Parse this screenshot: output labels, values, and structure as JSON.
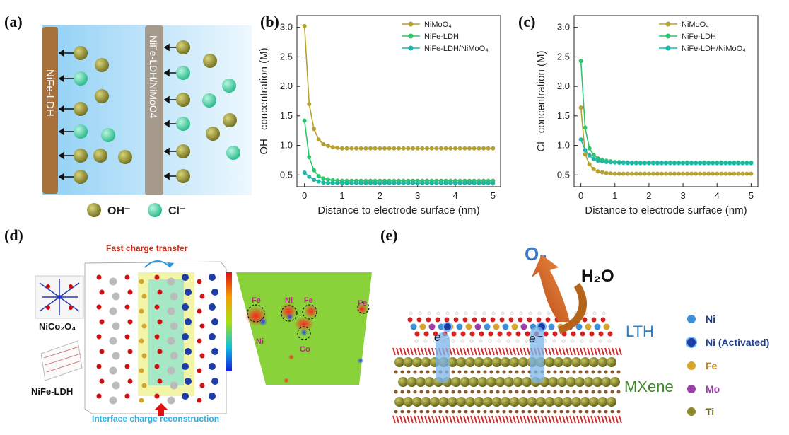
{
  "panels": {
    "a": {
      "label": "(a)",
      "electrode1": "NiFe-LDH",
      "electrode2": "NiFe-LDH/NiMoO4",
      "legend": [
        {
          "label": "OH⁻",
          "color": "#8c8a2c"
        },
        {
          "label": "Cl⁻",
          "color": "#3ed1a6"
        }
      ]
    },
    "b": {
      "label": "(b)"
    },
    "c": {
      "label": "(c)"
    },
    "d": {
      "label": "(d)",
      "title": "Fast charge transfer",
      "bottom": "Interface charge reconstruction",
      "structure1": "NiCo₂O₄",
      "structure2": "NiFe-LDH",
      "map_labels": [
        "Fe",
        "Ni",
        "Fe",
        "Fe",
        "Ni",
        "Co"
      ]
    },
    "e": {
      "label": "(e)",
      "o2": "O₂",
      "h2o": "H₂O",
      "electron": "e⁻",
      "layer_top": "LTH",
      "layer_bottom": "MXene",
      "legend": [
        {
          "label": "Ni",
          "color": "#3b8fd8"
        },
        {
          "label": "Ni (Activated)",
          "color": "#1c3d9e"
        },
        {
          "label": "Fe",
          "color": "#d4a52a"
        },
        {
          "label": "Mo",
          "color": "#9b3ea8"
        },
        {
          "label": "Ti",
          "color": "#8a8a2a"
        }
      ]
    }
  },
  "colors": {
    "nimoo4": "#b5a12e",
    "nife": "#2ec46a",
    "composite": "#1fb5a8"
  },
  "chart_data": [
    {
      "type": "line",
      "panel": "(b)",
      "xlabel": "Distance to electrode surface (nm)",
      "ylabel": "OH⁻ concentration (M)",
      "xlim": [
        -0.2,
        5.2
      ],
      "ylim": [
        0.3,
        3.2
      ],
      "xticks": [
        0,
        1,
        2,
        3,
        4,
        5
      ],
      "yticks": [
        0.5,
        1.0,
        1.5,
        2.0,
        2.5,
        3.0
      ],
      "ytick_labels": [
        "0.5",
        "1.0",
        "1.5",
        "2.0",
        "2.5",
        "3.0"
      ],
      "legend_position": "top-right",
      "series": [
        {
          "name": "NiMoO₄",
          "color": "#b5a12e",
          "x": [
            0,
            0.125,
            0.25,
            0.375,
            0.5,
            0.75,
            1,
            1.5,
            2,
            2.5,
            3,
            3.5,
            4,
            4.5,
            5
          ],
          "y": [
            3.02,
            1.7,
            1.28,
            1.1,
            1.02,
            0.97,
            0.95,
            0.95,
            0.95,
            0.95,
            0.95,
            0.95,
            0.95,
            0.95,
            0.95
          ]
        },
        {
          "name": "NiFe-LDH",
          "color": "#2ec46a",
          "x": [
            0,
            0.125,
            0.25,
            0.375,
            0.5,
            0.75,
            1,
            1.5,
            2,
            2.5,
            3,
            3.5,
            4,
            4.5,
            5
          ],
          "y": [
            1.42,
            0.8,
            0.58,
            0.48,
            0.44,
            0.41,
            0.4,
            0.4,
            0.4,
            0.4,
            0.4,
            0.4,
            0.4,
            0.4,
            0.4
          ]
        },
        {
          "name": "NiFe-LDH/NiMoO₄",
          "color": "#1fb5a8",
          "x": [
            0,
            0.125,
            0.25,
            0.375,
            0.5,
            0.75,
            1,
            1.5,
            2,
            2.5,
            3,
            3.5,
            4,
            4.5,
            5
          ],
          "y": [
            0.54,
            0.47,
            0.42,
            0.39,
            0.37,
            0.36,
            0.36,
            0.36,
            0.36,
            0.36,
            0.36,
            0.36,
            0.36,
            0.36,
            0.36
          ]
        }
      ]
    },
    {
      "type": "line",
      "panel": "(c)",
      "xlabel": "Distance to electrode surface (nm)",
      "ylabel": "Cl⁻ concentration (M)",
      "xlim": [
        -0.2,
        5.2
      ],
      "ylim": [
        0.3,
        3.2
      ],
      "xticks": [
        0,
        1,
        2,
        3,
        4,
        5
      ],
      "yticks": [
        0.5,
        1.0,
        1.5,
        2.0,
        2.5,
        3.0
      ],
      "ytick_labels": [
        "0.5",
        "1.0",
        "1.5",
        "2.0",
        "2.5",
        "3.0"
      ],
      "legend_position": "top-right",
      "series": [
        {
          "name": "NiMoO₄",
          "color": "#b5a12e",
          "x": [
            0,
            0.125,
            0.25,
            0.375,
            0.5,
            0.75,
            1,
            1.5,
            2,
            2.5,
            3,
            3.5,
            4,
            4.5,
            5
          ],
          "y": [
            1.64,
            0.85,
            0.68,
            0.6,
            0.56,
            0.53,
            0.52,
            0.52,
            0.52,
            0.52,
            0.52,
            0.52,
            0.52,
            0.52,
            0.52
          ]
        },
        {
          "name": "NiFe-LDH",
          "color": "#2ec46a",
          "x": [
            0,
            0.125,
            0.25,
            0.375,
            0.5,
            0.75,
            1,
            1.5,
            2,
            2.5,
            3,
            3.5,
            4,
            4.5,
            5
          ],
          "y": [
            2.43,
            1.3,
            0.95,
            0.84,
            0.78,
            0.74,
            0.72,
            0.71,
            0.71,
            0.71,
            0.71,
            0.71,
            0.71,
            0.71,
            0.71
          ]
        },
        {
          "name": "NiFe-LDH/NiMoO₄",
          "color": "#1fb5a8",
          "x": [
            0,
            0.125,
            0.25,
            0.375,
            0.5,
            0.75,
            1,
            1.5,
            2,
            2.5,
            3,
            3.5,
            4,
            4.5,
            5
          ],
          "y": [
            1.1,
            0.92,
            0.83,
            0.77,
            0.74,
            0.72,
            0.71,
            0.7,
            0.7,
            0.7,
            0.7,
            0.7,
            0.7,
            0.7,
            0.7
          ]
        }
      ]
    }
  ]
}
